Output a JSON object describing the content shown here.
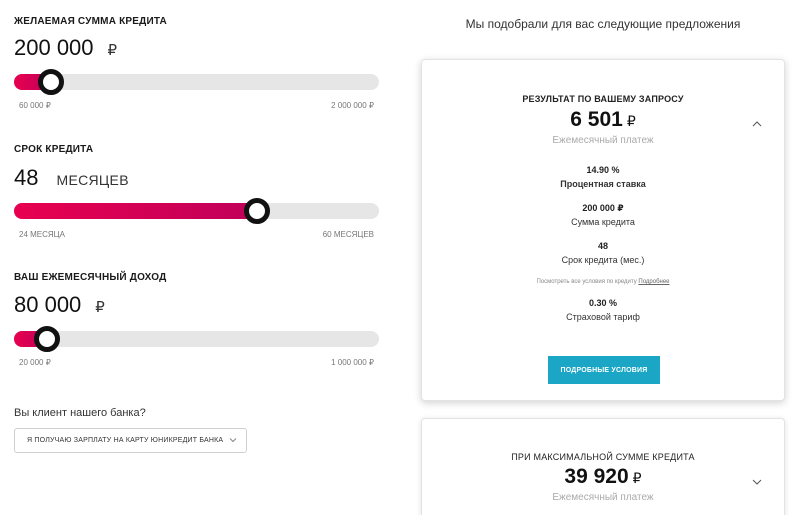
{
  "amount": {
    "title": "ЖЕЛАЕМАЯ СУММА КРЕДИТА",
    "value": "200 000",
    "unit": "₽",
    "min_label": "60 000 ₽",
    "max_label": "2 000 000 ₽",
    "slider_fraction": 0.1
  },
  "term": {
    "title": "СРОК КРЕДИТА",
    "value": "48",
    "unit": "МЕСЯЦЕВ",
    "min_label": "24 МЕСЯЦА",
    "max_label": "60 МЕСЯЦЕВ",
    "slider_fraction": 0.667
  },
  "income": {
    "title": "ВАШ ЕЖЕМЕСЯЧНЫЙ ДОХОД",
    "value": "80 000",
    "unit": "₽",
    "min_label": "20 000 ₽",
    "max_label": "1 000 000 ₽",
    "slider_fraction": 0.09
  },
  "client": {
    "question": "Вы клиент нашего банка?",
    "selected_option": "Я ПОЛУЧАЮ ЗАРПЛАТУ НА КАРТУ ЮНИКРЕДИТ БАНКА"
  },
  "offers": {
    "heading": "Мы подобрали для вас следующие предложения",
    "card1": {
      "title": "РЕЗУЛЬТАТ ПО ВАШЕМУ ЗАПРОСУ",
      "amount": "6 501",
      "currency": "₽",
      "subtitle": "Ежемесячный платеж",
      "rate_value": "14.90 %",
      "rate_label": "Процентная ставка",
      "sum_value": "200 000 ₽",
      "sum_label": "Сумма кредита",
      "term_value": "48",
      "term_label": "Срок кредита (мес.)",
      "note_text": "Посмотреть все условия по кредиту",
      "note_link": "Подробнее",
      "insurance_value": "0.30 %",
      "insurance_label": "Страховой тариф",
      "button_label": "ПОДРОБНЫЕ УСЛОВИЯ"
    },
    "card2": {
      "title": "ПРИ МАКСИМАЛЬНОЙ СУММЕ КРЕДИТА",
      "amount": "39 920",
      "currency": "₽",
      "subtitle": "Ежемесячный платеж"
    }
  },
  "colors": {
    "accent": "#e8004f",
    "button": "#1ba6c6"
  }
}
